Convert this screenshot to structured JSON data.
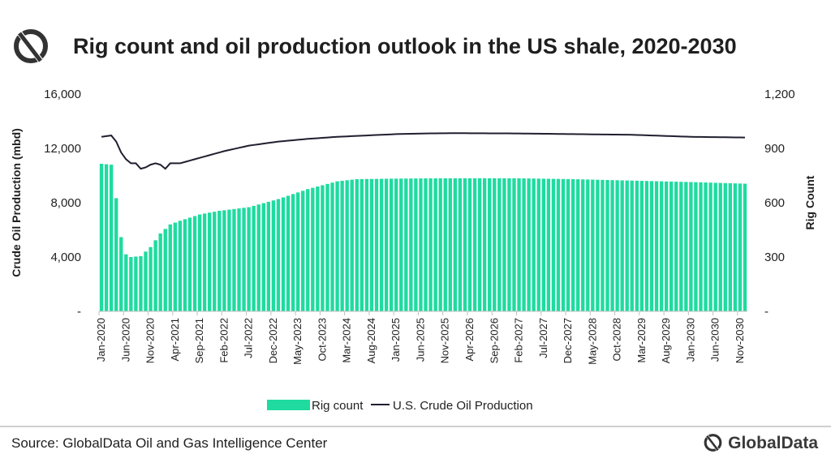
{
  "header": {
    "title": "Rig count and oil production outlook in the US shale, 2020-2030",
    "logo_icon": "globaldata-logo-icon"
  },
  "colors": {
    "bar": "#1fdba0",
    "line": "#1f1f2f",
    "axis": "#bfbfbf",
    "text": "#1f1f1f"
  },
  "chart_data": {
    "type": "bar+line",
    "title": "Rig count and oil production outlook in the US shale, 2020-2030",
    "y_left": {
      "label": "Crude Oil Production (mbd)",
      "range": [
        0,
        16000
      ],
      "ticks": [
        "-",
        "4,000",
        "8,000",
        "12,000",
        "16,000"
      ],
      "tick_values": [
        0,
        4000,
        8000,
        12000,
        16000
      ]
    },
    "y_right": {
      "label": "Rig Count",
      "range": [
        0,
        1200
      ],
      "ticks": [
        "-",
        "300",
        "600",
        "900",
        "1,200"
      ],
      "tick_values": [
        0,
        300,
        600,
        900,
        1200
      ]
    },
    "x_tick_labels": [
      "Jan-2020",
      "Jun-2020",
      "Nov-2020",
      "Apr-2021",
      "Sep-2021",
      "Feb-2022",
      "Jul-2022",
      "Dec-2022",
      "May-2023",
      "Oct-2023",
      "Mar-2024",
      "Aug-2024",
      "Jan-2025",
      "Jun-2025",
      "Nov-2025",
      "Apr-2026",
      "Sep-2026",
      "Feb-2027",
      "Jul-2027",
      "Dec-2027",
      "May-2028",
      "Oct-2028",
      "Mar-2029",
      "Aug-2029",
      "Jan-2030",
      "Jun-2030",
      "Nov-2030"
    ],
    "period": {
      "start": "Jan-2020",
      "end": "Dec-2030",
      "months": 132
    },
    "series": [
      {
        "name": "Rig count",
        "kind": "bar",
        "axis": "right",
        "monthly_keypoints": [
          [
            0,
            815
          ],
          [
            2,
            810
          ],
          [
            3,
            625
          ],
          [
            4,
            410
          ],
          [
            5,
            315
          ],
          [
            6,
            300
          ],
          [
            8,
            305
          ],
          [
            10,
            355
          ],
          [
            12,
            430
          ],
          [
            14,
            480
          ],
          [
            16,
            500
          ],
          [
            20,
            535
          ],
          [
            24,
            555
          ],
          [
            30,
            575
          ],
          [
            36,
            620
          ],
          [
            42,
            675
          ],
          [
            48,
            718
          ],
          [
            52,
            730
          ],
          [
            60,
            733
          ],
          [
            70,
            735
          ],
          [
            84,
            735
          ],
          [
            96,
            730
          ],
          [
            108,
            722
          ],
          [
            120,
            714
          ],
          [
            131,
            705
          ]
        ]
      },
      {
        "name": "U.S. Crude Oil Production",
        "kind": "line",
        "axis": "left",
        "monthly_keypoints": [
          [
            0,
            12850
          ],
          [
            2,
            12950
          ],
          [
            3,
            12500
          ],
          [
            4,
            11700
          ],
          [
            5,
            11200
          ],
          [
            6,
            10900
          ],
          [
            7,
            10900
          ],
          [
            8,
            10500
          ],
          [
            9,
            10600
          ],
          [
            10,
            10800
          ],
          [
            11,
            10900
          ],
          [
            12,
            10800
          ],
          [
            13,
            10500
          ],
          [
            14,
            10900
          ],
          [
            16,
            10900
          ],
          [
            18,
            11100
          ],
          [
            21,
            11400
          ],
          [
            25,
            11800
          ],
          [
            30,
            12200
          ],
          [
            36,
            12500
          ],
          [
            42,
            12700
          ],
          [
            48,
            12850
          ],
          [
            54,
            12950
          ],
          [
            60,
            13050
          ],
          [
            66,
            13100
          ],
          [
            72,
            13120
          ],
          [
            84,
            13100
          ],
          [
            96,
            13050
          ],
          [
            108,
            13000
          ],
          [
            120,
            12850
          ],
          [
            131,
            12800
          ]
        ]
      }
    ],
    "legend": [
      "Rig count",
      "U.S. Crude Oil Production"
    ],
    "legend_position": "bottom"
  },
  "footer": {
    "source": "Source: GlobalData Oil and Gas Intelligence Center",
    "brand_name": "GlobalData",
    "brand_icon": "globaldata-logo-icon"
  }
}
